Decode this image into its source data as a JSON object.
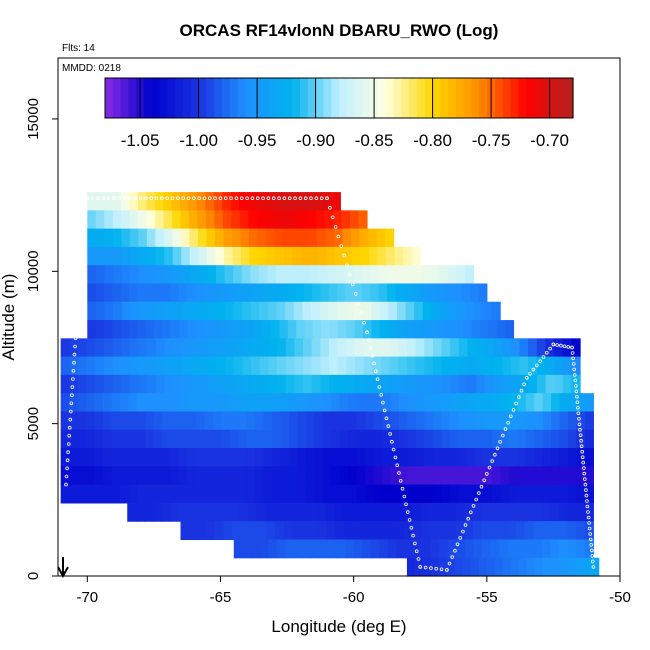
{
  "chart_data": {
    "type": "heatmap",
    "title": "ORCAS RF14vlonN DBARU_RWO (Log)",
    "annotation_flights": "Flts: 14",
    "annotation_date": "MMDD: 0218",
    "xlabel": "Longitude (deg E)",
    "ylabel": "Altitude (m)",
    "xlim": [
      -71.1,
      -50
    ],
    "ylim": [
      0,
      17000
    ],
    "xticks": [
      -70,
      -65,
      -60,
      -55,
      -50
    ],
    "xtick_labels": [
      "-70",
      "-65",
      "-60",
      "-55",
      "-50"
    ],
    "yticks": [
      0,
      5000,
      10000,
      15000
    ],
    "ytick_labels": [
      "0",
      "5000",
      "10000",
      "15000"
    ],
    "colorbar": {
      "range": [
        -1.08,
        -0.68
      ],
      "ticks": [
        -1.05,
        -1.0,
        -0.95,
        -0.9,
        -0.85,
        -0.8,
        -0.75,
        -0.7
      ],
      "tick_labels": [
        "-1.05",
        "-1.00",
        "-0.95",
        "-0.90",
        "-0.85",
        "-0.80",
        "-0.75",
        "-0.70"
      ],
      "colors": [
        "#8a2be2",
        "#0000cd",
        "#1a33e0",
        "#1e90ff",
        "#00b2ee",
        "#bfefff",
        "#ffffe0",
        "#ffd700",
        "#ff8c00",
        "#ff0000",
        "#b22222"
      ]
    },
    "field_rows": [
      {
        "alt": 12300,
        "lon_min": -70.0,
        "lon_max": -60.5,
        "values": [
          -0.86,
          -0.86,
          -0.82,
          -0.79,
          -0.76,
          -0.73,
          -0.71,
          -0.7,
          -0.7,
          -0.71
        ]
      },
      {
        "alt": 11700,
        "lon_min": -70.0,
        "lon_max": -59.5,
        "values": [
          -0.9,
          -0.88,
          -0.85,
          -0.81,
          -0.77,
          -0.74,
          -0.72,
          -0.71,
          -0.72,
          -0.73,
          -0.75
        ]
      },
      {
        "alt": 11100,
        "lon_min": -70.0,
        "lon_max": -58.5,
        "values": [
          -0.93,
          -0.92,
          -0.9,
          -0.86,
          -0.81,
          -0.77,
          -0.75,
          -0.74,
          -0.74,
          -0.75,
          -0.78,
          -0.8
        ]
      },
      {
        "alt": 10500,
        "lon_min": -70.0,
        "lon_max": -57.5,
        "values": [
          -0.95,
          -0.95,
          -0.93,
          -0.91,
          -0.87,
          -0.83,
          -0.8,
          -0.79,
          -0.78,
          -0.79,
          -0.8,
          -0.82,
          -0.84
        ]
      },
      {
        "alt": 9900,
        "lon_min": -70.0,
        "lon_max": -55.5,
        "values": [
          -0.98,
          -0.97,
          -0.96,
          -0.95,
          -0.93,
          -0.91,
          -0.89,
          -0.88,
          -0.88,
          -0.87,
          -0.86,
          -0.85,
          -0.85,
          -0.86,
          -0.88
        ]
      },
      {
        "alt": 9300,
        "lon_min": -70.0,
        "lon_max": -55.0,
        "values": [
          -0.99,
          -0.98,
          -0.97,
          -0.97,
          -0.96,
          -0.95,
          -0.94,
          -0.93,
          -0.92,
          -0.91,
          -0.9,
          -0.91,
          -0.93,
          -0.95,
          -0.96,
          -0.97
        ]
      },
      {
        "alt": 8700,
        "lon_min": -70.0,
        "lon_max": -54.5,
        "values": [
          -0.98,
          -0.97,
          -0.95,
          -0.94,
          -0.93,
          -0.92,
          -0.91,
          -0.9,
          -0.88,
          -0.86,
          -0.85,
          -0.88,
          -0.91,
          -0.94,
          -0.96,
          -0.97
        ]
      },
      {
        "alt": 8100,
        "lon_min": -70.0,
        "lon_max": -54.0,
        "values": [
          -1.0,
          -0.99,
          -0.98,
          -0.97,
          -0.96,
          -0.95,
          -0.94,
          -0.92,
          -0.9,
          -0.89,
          -0.9,
          -0.92,
          -0.94,
          -0.95,
          -0.96,
          -0.97,
          -0.98
        ]
      },
      {
        "alt": 7500,
        "lon_min": -71.0,
        "lon_max": -51.5,
        "values": [
          -1.0,
          -0.99,
          -0.98,
          -0.97,
          -0.96,
          -0.95,
          -0.94,
          -0.93,
          -0.92,
          -0.9,
          -0.88,
          -0.86,
          -0.86,
          -0.88,
          -0.9,
          -0.92,
          -0.94,
          -0.97,
          -1.01,
          -1.04
        ]
      },
      {
        "alt": 6900,
        "lon_min": -71.0,
        "lon_max": -51.5,
        "values": [
          -0.98,
          -0.97,
          -0.96,
          -0.95,
          -0.94,
          -0.93,
          -0.92,
          -0.91,
          -0.9,
          -0.89,
          -0.88,
          -0.89,
          -0.9,
          -0.91,
          -0.92,
          -0.93,
          -0.92,
          -0.91,
          -0.93,
          -0.97
        ]
      },
      {
        "alt": 6300,
        "lon_min": -71.0,
        "lon_max": -51.5,
        "values": [
          -1.0,
          -0.99,
          -0.98,
          -0.97,
          -0.96,
          -0.95,
          -0.94,
          -0.93,
          -0.92,
          -0.91,
          -0.92,
          -0.93,
          -0.94,
          -0.95,
          -0.96,
          -0.97,
          -0.95,
          -0.93,
          -0.9,
          -0.92
        ]
      },
      {
        "alt": 5700,
        "lon_min": -71.0,
        "lon_max": -51.0,
        "values": [
          -0.99,
          -0.98,
          -0.97,
          -0.96,
          -0.96,
          -0.95,
          -0.95,
          -0.94,
          -0.94,
          -0.95,
          -0.96,
          -0.97,
          -0.97,
          -0.96,
          -0.95,
          -0.94,
          -0.93,
          -0.92,
          -0.9,
          -0.93,
          -0.95
        ]
      },
      {
        "alt": 5100,
        "lon_min": -71.0,
        "lon_max": -51.0,
        "values": [
          -1.0,
          -1.0,
          -0.99,
          -0.99,
          -0.98,
          -0.98,
          -0.97,
          -0.97,
          -0.98,
          -0.99,
          -1.0,
          -1.0,
          -0.99,
          -0.98,
          -0.97,
          -0.96,
          -0.95,
          -0.95,
          -0.96,
          -0.98,
          -1.0
        ]
      },
      {
        "alt": 4500,
        "lon_min": -71.0,
        "lon_max": -51.0,
        "values": [
          -1.01,
          -1.01,
          -1.0,
          -1.0,
          -0.99,
          -0.99,
          -0.99,
          -0.98,
          -0.98,
          -0.99,
          -1.0,
          -1.01,
          -1.01,
          -1.0,
          -0.99,
          -0.98,
          -0.98,
          -0.97,
          -0.98,
          -0.99,
          -1.01
        ]
      },
      {
        "alt": 3900,
        "lon_min": -71.0,
        "lon_max": -51.0,
        "values": [
          -1.02,
          -1.02,
          -1.01,
          -1.01,
          -1.01,
          -1.0,
          -1.0,
          -1.0,
          -1.01,
          -1.02,
          -1.03,
          -1.03,
          -1.02,
          -1.02,
          -1.01,
          -1.01,
          -1.0,
          -1.0,
          -1.01,
          -1.02,
          -1.03
        ]
      },
      {
        "alt": 3300,
        "lon_min": -71.0,
        "lon_max": -51.0,
        "values": [
          -1.03,
          -1.03,
          -1.02,
          -1.02,
          -1.02,
          -1.01,
          -1.01,
          -1.01,
          -1.02,
          -1.02,
          -1.03,
          -1.04,
          -1.05,
          -1.06,
          -1.06,
          -1.06,
          -1.06,
          -1.05,
          -1.05,
          -1.05,
          -1.05
        ]
      },
      {
        "alt": 2700,
        "lon_min": -71.0,
        "lon_max": -51.0,
        "values": [
          -1.02,
          -1.02,
          -1.02,
          -1.01,
          -1.01,
          -1.01,
          -1.01,
          -1.01,
          -1.02,
          -1.02,
          -1.03,
          -1.03,
          -1.04,
          -1.04,
          -1.04,
          -1.03,
          -1.03,
          -1.02,
          -1.02,
          -1.02,
          -1.03
        ]
      },
      {
        "alt": 2100,
        "lon_min": -68.5,
        "lon_max": -51.0,
        "values": [
          -1.01,
          -1.01,
          -1.0,
          -1.0,
          -1.0,
          -1.01,
          -1.01,
          -1.01,
          -1.02,
          -1.02,
          -1.02,
          -1.01,
          -1.01,
          -1.0,
          -1.0,
          -1.0,
          -1.01,
          -1.01
        ]
      },
      {
        "alt": 1500,
        "lon_min": -66.5,
        "lon_max": -51.0,
        "values": [
          -1.0,
          -1.0,
          -0.99,
          -0.99,
          -1.0,
          -1.0,
          -1.01,
          -1.01,
          -1.01,
          -1.0,
          -1.0,
          -0.99,
          -0.99,
          -0.98,
          -0.98,
          -0.99
        ]
      },
      {
        "alt": 900,
        "lon_min": -64.5,
        "lon_max": -51.0,
        "values": [
          -0.99,
          -0.99,
          -0.98,
          -0.98,
          -0.98,
          -0.99,
          -1.0,
          -1.0,
          -0.99,
          -0.98,
          -0.97,
          -0.97,
          -0.96,
          -0.97
        ]
      },
      {
        "alt": 300,
        "lon_min": -58.0,
        "lon_max": -50.8,
        "values": [
          -1.01,
          -1.0,
          -0.99,
          -0.98,
          -0.97,
          -0.96,
          -0.95,
          -0.93
        ]
      }
    ]
  }
}
